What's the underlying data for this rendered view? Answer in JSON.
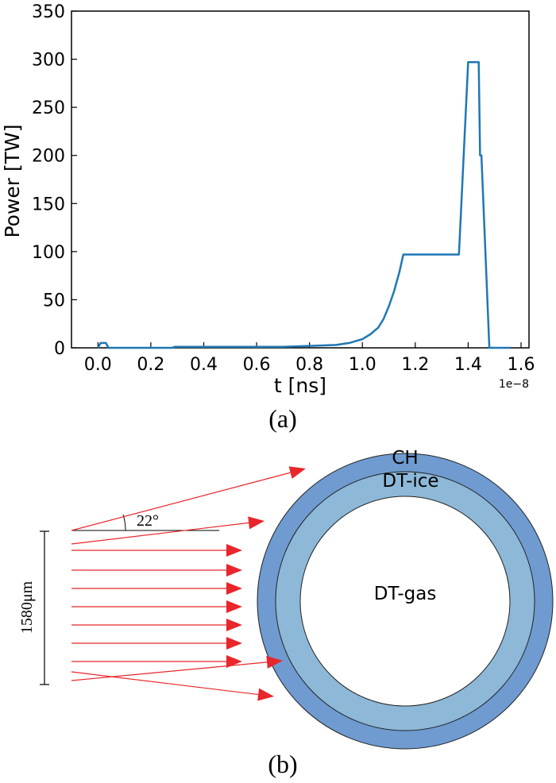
{
  "chart_data": {
    "type": "line",
    "xlabel": "t [ns]",
    "ylabel": "Power [TW]",
    "x_offset_label": "1e−8",
    "xlim": [
      -0.1,
      1.63
    ],
    "ylim": [
      0,
      350
    ],
    "xticks": [
      "0.0",
      "0.2",
      "0.4",
      "0.6",
      "0.8",
      "1.0",
      "1.2",
      "1.4",
      "1.6"
    ],
    "yticks": [
      "0",
      "50",
      "100",
      "150",
      "200",
      "250",
      "300",
      "350"
    ],
    "series": [
      {
        "color": "#1f77b4",
        "x": [
          0.0,
          0.01,
          0.03,
          0.04,
          0.05,
          0.28,
          0.29,
          0.7,
          0.8,
          0.9,
          0.95,
          1.0,
          1.03,
          1.06,
          1.08,
          1.1,
          1.12,
          1.14,
          1.155,
          1.16,
          1.365,
          1.4,
          1.44,
          1.445,
          1.45,
          1.48,
          1.56
        ],
        "y": [
          0,
          5,
          5,
          0,
          0,
          0,
          1,
          1,
          2,
          3,
          5,
          9,
          14,
          21,
          30,
          43,
          59,
          79,
          97,
          97,
          97,
          297,
          297,
          200,
          200,
          0,
          0
        ]
      }
    ]
  },
  "panel_a_label": "(a)",
  "panel_b_label": "(b)",
  "diagram": {
    "layer_outer": "CH",
    "layer_middle": "DT-ice",
    "layer_core": "DT-gas",
    "angle_label": "22°",
    "beam_width_label": "1580μm",
    "colors": {
      "ch": "#6f9bd1",
      "ice": "#8db8d8",
      "gas": "#ffffff",
      "ray": "#e8262b",
      "line": "#1f77b4"
    }
  }
}
